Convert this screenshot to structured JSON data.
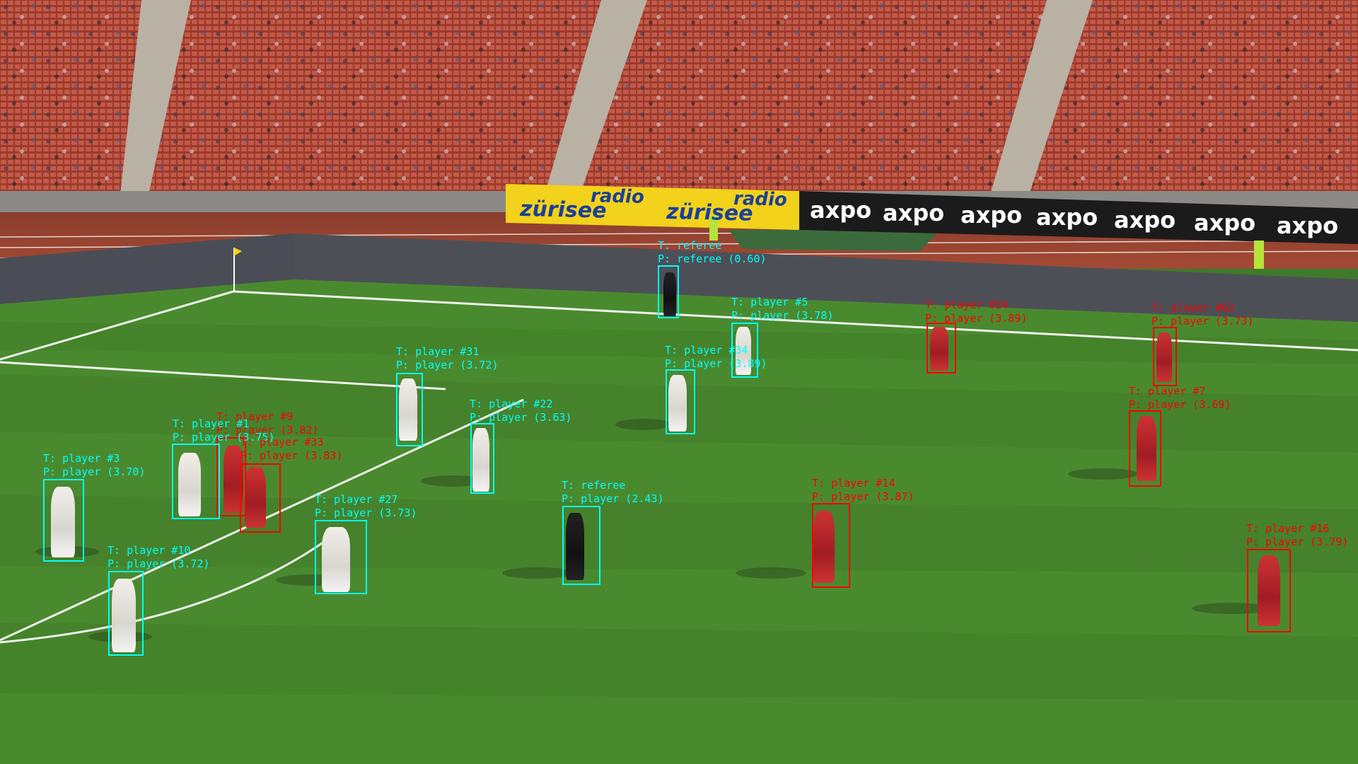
{
  "sponsors": {
    "radio_line1": "radio",
    "radio_line2": "zürisee",
    "axpo": "axpo"
  },
  "colors": {
    "team_cyan": "#00ffff",
    "team_red": "#ff0000",
    "pitch_light": "#4f8d33",
    "pitch_dark": "#3e7a27",
    "seats": "#b4493a",
    "banner_yellow": "#f2d21a",
    "banner_black": "#1b1b1b"
  },
  "detections": [
    {
      "color": "cyan",
      "t": "T: referee",
      "p": "P: referee (0.60)"
    },
    {
      "color": "cyan",
      "t": "T: player #5",
      "p": "P: player (3.78)"
    },
    {
      "color": "red",
      "t": "T: player #24",
      "p": "P: player (3.89)"
    },
    {
      "color": "red",
      "t": "T: player #62",
      "p": "P: player (3.73)"
    },
    {
      "color": "cyan",
      "t": "T: player #31",
      "p": "P: player (3.72)"
    },
    {
      "color": "cyan",
      "t": "T: player #34",
      "p": "P: player (3.89)"
    },
    {
      "color": "red",
      "t": "T: player #7",
      "p": "P: player (3.69)"
    },
    {
      "color": "cyan",
      "t": "T: player #22",
      "p": "P: player (3.63)"
    },
    {
      "color": "red",
      "t": "T: player #9",
      "p": "P: player (3.82)"
    },
    {
      "color": "cyan",
      "t": "T: player #1",
      "p": "P: player (3.75)"
    },
    {
      "color": "red",
      "t": "T: player #33",
      "p": "P: player (3.83)"
    },
    {
      "color": "cyan",
      "t": "T: player #3",
      "p": "P: player (3.70)"
    },
    {
      "color": "cyan",
      "t": "T: referee",
      "p": "P: player (2.43)"
    },
    {
      "color": "red",
      "t": "T: player #14",
      "p": "P: player (3.87)"
    },
    {
      "color": "cyan",
      "t": "T: player #27",
      "p": "P: player (3.73)"
    },
    {
      "color": "red",
      "t": "T: player #16",
      "p": "P: player (3.79)"
    },
    {
      "color": "cyan",
      "t": "T: player #10",
      "p": "P: player (3.72)"
    }
  ]
}
